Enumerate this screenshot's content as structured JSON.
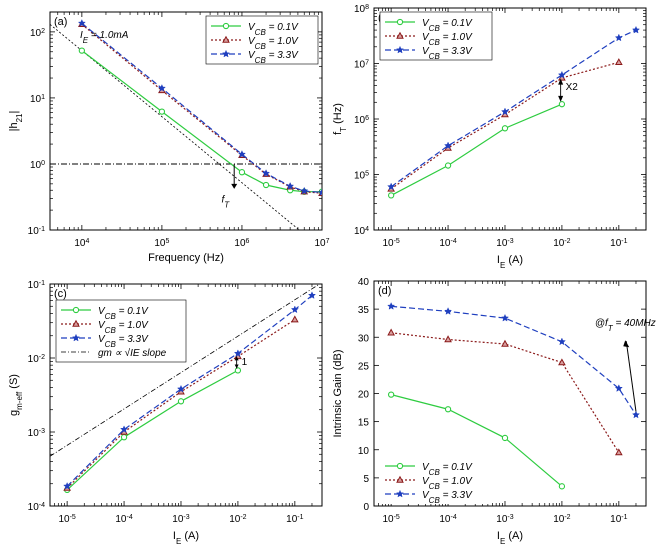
{
  "chart_data": [
    {
      "id": "a",
      "type": "line",
      "panel_label": "(a)",
      "xscale": "log",
      "yscale": "log",
      "xlim": [
        4000,
        10000000
      ],
      "ylim": [
        0.1,
        200
      ],
      "xlabel": "Frequency (Hz)",
      "ylabel": "|h21|",
      "xticks": [
        {
          "v": 10000,
          "b": "10",
          "e": "4"
        },
        {
          "v": 100000,
          "b": "10",
          "e": "5"
        },
        {
          "v": 1000000,
          "b": "10",
          "e": "6"
        },
        {
          "v": 10000000,
          "b": "10",
          "e": "7"
        }
      ],
      "yticks": [
        {
          "v": 0.1,
          "t": "10",
          "e": "-1"
        },
        {
          "v": 1,
          "t": "10",
          "e": "0"
        },
        {
          "v": 10,
          "t": "10",
          "e": "1"
        },
        {
          "v": 100,
          "t": "10",
          "e": "2"
        }
      ],
      "annotation": {
        "text": "I",
        "sub": "E",
        "rest": " = 1.0mA"
      },
      "ft_label": {
        "text": "f",
        "sub": "T"
      },
      "legend_position": "top-right",
      "series": [
        {
          "name": "0.1V",
          "color": "#2ecc40",
          "dash": "",
          "marker": "circle",
          "x": [
            10000,
            100000,
            1000000,
            2000000,
            4000000,
            6000000,
            10000000
          ],
          "y": [
            52,
            6.2,
            0.75,
            0.48,
            0.4,
            0.38,
            0.38
          ],
          "markers_x": [
            10000,
            100000,
            1000000,
            2000000,
            4000000,
            6000000,
            10000000
          ],
          "markers_y": [
            52,
            6.2,
            0.75,
            0.48,
            0.4,
            0.38,
            0.38
          ]
        },
        {
          "name": "1.0V",
          "color": "#8b1a1a",
          "dash": "2,2",
          "marker": "triangle",
          "x": [
            10000,
            100000,
            1000000,
            2000000,
            4000000,
            6000000,
            10000000
          ],
          "y": [
            130,
            13,
            1.35,
            0.7,
            0.45,
            0.38,
            0.36
          ],
          "markers_x": [
            10000,
            100000,
            1000000,
            2000000,
            4000000,
            6000000,
            10000000
          ],
          "markers_y": [
            130,
            13,
            1.35,
            0.7,
            0.45,
            0.38,
            0.36
          ]
        },
        {
          "name": "3.3V",
          "color": "#1f3fbf",
          "dash": "6,3",
          "marker": "star",
          "x": [
            10000,
            100000,
            1000000,
            2000000,
            4000000,
            6000000,
            10000000
          ],
          "y": [
            135,
            14,
            1.4,
            0.72,
            0.46,
            0.39,
            0.37
          ],
          "markers_x": [
            10000,
            100000,
            1000000,
            2000000,
            4000000,
            6000000,
            10000000
          ],
          "markers_y": [
            135,
            14,
            1.4,
            0.72,
            0.46,
            0.39,
            0.37
          ]
        }
      ]
    },
    {
      "id": "b",
      "type": "line",
      "panel_label": "(b)",
      "xscale": "log",
      "yscale": "log",
      "xlim": [
        5e-06,
        0.3
      ],
      "ylim": [
        10000,
        100000000
      ],
      "xlabel": "I",
      "xlabel_sub": "E",
      "xlabel_rest": " (A)",
      "ylabel": "fT (Hz)",
      "xticks": [
        {
          "v": 1e-05,
          "b": "10",
          "e": "-5"
        },
        {
          "v": 0.0001,
          "b": "10",
          "e": "-4"
        },
        {
          "v": 0.001,
          "b": "10",
          "e": "-3"
        },
        {
          "v": 0.01,
          "b": "10",
          "e": "-2"
        },
        {
          "v": 0.1,
          "b": "10",
          "e": "-1"
        }
      ],
      "yticks": [
        {
          "v": 10000,
          "t": "10",
          "e": "4"
        },
        {
          "v": 100000,
          "t": "10",
          "e": "5"
        },
        {
          "v": 1000000,
          "t": "10",
          "e": "6"
        },
        {
          "v": 10000000,
          "t": "10",
          "e": "7"
        },
        {
          "v": 100000000,
          "t": "10",
          "e": "8"
        }
      ],
      "annotation": {
        "text": "X2"
      },
      "legend_position": "top-left",
      "series": [
        {
          "name": "0.1V",
          "color": "#2ecc40",
          "dash": "",
          "marker": "circle",
          "x": [
            1e-05,
            0.0001,
            0.001,
            0.01
          ],
          "y": [
            42000,
            145000,
            680000,
            1850000
          ]
        },
        {
          "name": "1.0V",
          "color": "#8b1a1a",
          "dash": "2,2",
          "marker": "triangle",
          "x": [
            1e-05,
            0.0001,
            0.001,
            0.01,
            0.1
          ],
          "y": [
            55000,
            300000,
            1200000,
            5500000,
            10500000
          ]
        },
        {
          "name": "3.3V",
          "color": "#1f3fbf",
          "dash": "6,3",
          "marker": "star",
          "x": [
            1e-05,
            0.0001,
            0.001,
            0.01,
            0.1,
            0.2
          ],
          "y": [
            60000,
            330000,
            1350000,
            6200000,
            29000000,
            40000000
          ]
        }
      ]
    },
    {
      "id": "c",
      "type": "line",
      "panel_label": "(c)",
      "xscale": "log",
      "yscale": "log",
      "xlim": [
        5e-06,
        0.3
      ],
      "ylim": [
        0.0001,
        0.1
      ],
      "xlabel": "I",
      "xlabel_sub": "E",
      "xlabel_rest": " (A)",
      "ylabel": "gm-eff (S)",
      "xticks": [
        {
          "v": 1e-05,
          "b": "10",
          "e": "-5"
        },
        {
          "v": 0.0001,
          "b": "10",
          "e": "-4"
        },
        {
          "v": 0.001,
          "b": "10",
          "e": "-3"
        },
        {
          "v": 0.01,
          "b": "10",
          "e": "-2"
        },
        {
          "v": 0.1,
          "b": "10",
          "e": "-1"
        }
      ],
      "yticks": [
        {
          "v": 0.0001,
          "t": "10",
          "e": "-4"
        },
        {
          "v": 0.001,
          "t": "10",
          "e": "-3"
        },
        {
          "v": 0.01,
          "t": "10",
          "e": "-2"
        },
        {
          "v": 0.1,
          "t": "10",
          "e": "-1"
        }
      ],
      "annotation": {
        "text": "1"
      },
      "legend_position": "top-left",
      "slope_legend": "gm ∝ √IE slope",
      "series": [
        {
          "name": "0.1V",
          "color": "#2ecc40",
          "dash": "",
          "marker": "circle",
          "x": [
            1e-05,
            0.0001,
            0.001,
            0.01
          ],
          "y": [
            0.000165,
            0.00085,
            0.0026,
            0.0068
          ]
        },
        {
          "name": "1.0V",
          "color": "#8b1a1a",
          "dash": "2,2",
          "marker": "triangle",
          "x": [
            1e-05,
            0.0001,
            0.001,
            0.01,
            0.1
          ],
          "y": [
            0.000175,
            0.001,
            0.0035,
            0.0105,
            0.033
          ]
        },
        {
          "name": "3.3V",
          "color": "#1f3fbf",
          "dash": "6,3",
          "marker": "star",
          "x": [
            1e-05,
            0.0001,
            0.001,
            0.01,
            0.1,
            0.2
          ],
          "y": [
            0.000185,
            0.00108,
            0.0038,
            0.0115,
            0.045,
            0.07
          ]
        }
      ]
    },
    {
      "id": "d",
      "type": "line",
      "panel_label": "(d)",
      "xscale": "log",
      "yscale": "linear",
      "xlim": [
        5e-06,
        0.3
      ],
      "ylim": [
        0,
        40
      ],
      "xlabel": "I",
      "xlabel_sub": "E",
      "xlabel_rest": " (A)",
      "ylabel": "Intrinsic Gain (dB)",
      "xticks": [
        {
          "v": 1e-05,
          "b": "10",
          "e": "-5"
        },
        {
          "v": 0.0001,
          "b": "10",
          "e": "-4"
        },
        {
          "v": 0.001,
          "b": "10",
          "e": "-3"
        },
        {
          "v": 0.01,
          "b": "10",
          "e": "-2"
        },
        {
          "v": 0.1,
          "b": "10",
          "e": "-1"
        }
      ],
      "yticks": [
        {
          "v": 0,
          "t": "0"
        },
        {
          "v": 5,
          "t": "5"
        },
        {
          "v": 10,
          "t": "10"
        },
        {
          "v": 15,
          "t": "15"
        },
        {
          "v": 20,
          "t": "20"
        },
        {
          "v": 25,
          "t": "25"
        },
        {
          "v": 30,
          "t": "30"
        },
        {
          "v": 35,
          "t": "35"
        },
        {
          "v": 40,
          "t": "40"
        }
      ],
      "annotation": {
        "text": "@f",
        "sub": "T",
        "rest": " = 40MHz"
      },
      "legend_position": "bottom-left",
      "series": [
        {
          "name": "0.1V",
          "color": "#2ecc40",
          "dash": "",
          "marker": "circle",
          "x": [
            1e-05,
            0.0001,
            0.001,
            0.01
          ],
          "y": [
            19.8,
            17.2,
            12.1,
            3.5
          ]
        },
        {
          "name": "1.0V",
          "color": "#8b1a1a",
          "dash": "2,2",
          "marker": "triangle",
          "x": [
            1e-05,
            0.0001,
            0.001,
            0.01,
            0.1
          ],
          "y": [
            30.8,
            29.6,
            28.8,
            25.5,
            9.5
          ]
        },
        {
          "name": "3.3V",
          "color": "#1f3fbf",
          "dash": "6,3",
          "marker": "star",
          "x": [
            1e-05,
            0.0001,
            0.001,
            0.01,
            0.1,
            0.2
          ],
          "y": [
            35.5,
            34.6,
            33.4,
            29.2,
            20.9,
            16.2
          ]
        }
      ]
    }
  ],
  "legend_prefix": "V",
  "legend_sub": "CB",
  "legend_sep": " = "
}
